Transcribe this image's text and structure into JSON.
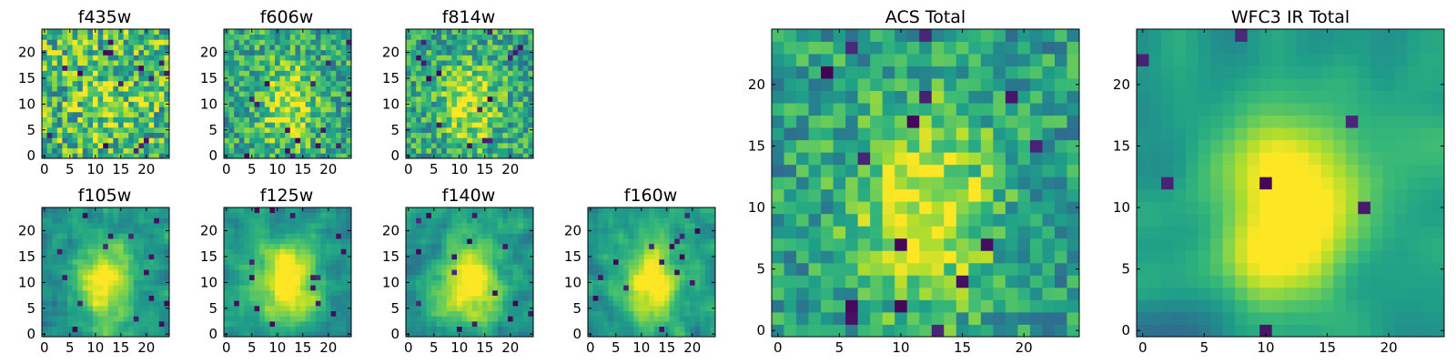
{
  "chart_data": [
    {
      "type": "heatmap",
      "title": "f435w",
      "colormap": "viridis",
      "grid": false,
      "xlim": [
        -0.5,
        24.5
      ],
      "ylim": [
        -0.5,
        24.5
      ],
      "xticks": [
        "0",
        "5",
        "10",
        "15",
        "20"
      ],
      "yticks": [
        "0",
        "5",
        "10",
        "15",
        "20"
      ],
      "rows": 25,
      "cols": 25,
      "pattern": "noise",
      "seed": 11
    },
    {
      "type": "heatmap",
      "title": "f606w",
      "colormap": "viridis",
      "grid": false,
      "xlim": [
        -0.5,
        24.5
      ],
      "ylim": [
        -0.5,
        24.5
      ],
      "xticks": [
        "0",
        "5",
        "10",
        "15",
        "20"
      ],
      "yticks": [
        "0",
        "5",
        "10",
        "15",
        "20"
      ],
      "rows": 25,
      "cols": 25,
      "pattern": "noise-center",
      "seed": 23
    },
    {
      "type": "heatmap",
      "title": "f814w",
      "colormap": "viridis",
      "grid": false,
      "xlim": [
        -0.5,
        24.5
      ],
      "ylim": [
        -0.5,
        24.5
      ],
      "xticks": [
        "0",
        "5",
        "10",
        "15",
        "20"
      ],
      "yticks": [
        "0",
        "5",
        "10",
        "15",
        "20"
      ],
      "rows": 25,
      "cols": 25,
      "pattern": "noise-center",
      "seed": 37
    },
    {
      "type": "heatmap",
      "title": "f105w",
      "colormap": "viridis",
      "grid": false,
      "xlim": [
        -0.5,
        24.5
      ],
      "ylim": [
        -0.5,
        24.5
      ],
      "xticks": [
        "0",
        "5",
        "10",
        "15",
        "20"
      ],
      "yticks": [
        "0",
        "5",
        "10",
        "15",
        "20"
      ],
      "rows": 25,
      "cols": 25,
      "pattern": "blob",
      "seed": 41
    },
    {
      "type": "heatmap",
      "title": "f125w",
      "colormap": "viridis",
      "grid": false,
      "xlim": [
        -0.5,
        24.5
      ],
      "ylim": [
        -0.5,
        24.5
      ],
      "xticks": [
        "0",
        "5",
        "10",
        "15",
        "20"
      ],
      "yticks": [
        "0",
        "5",
        "10",
        "15",
        "20"
      ],
      "rows": 25,
      "cols": 25,
      "pattern": "blob",
      "seed": 53
    },
    {
      "type": "heatmap",
      "title": "f140w",
      "colormap": "viridis",
      "grid": false,
      "xlim": [
        -0.5,
        24.5
      ],
      "ylim": [
        -0.5,
        24.5
      ],
      "xticks": [
        "0",
        "5",
        "10",
        "15",
        "20"
      ],
      "yticks": [
        "0",
        "5",
        "10",
        "15",
        "20"
      ],
      "rows": 25,
      "cols": 25,
      "pattern": "blob",
      "seed": 67
    },
    {
      "type": "heatmap",
      "title": "f160w",
      "colormap": "viridis",
      "grid": false,
      "xlim": [
        -0.5,
        24.5
      ],
      "ylim": [
        -0.5,
        24.5
      ],
      "xticks": [
        "0",
        "5",
        "10",
        "15",
        "20"
      ],
      "yticks": [
        "0",
        "5",
        "10",
        "15",
        "20"
      ],
      "rows": 25,
      "cols": 25,
      "pattern": "blob",
      "seed": 79
    },
    {
      "type": "heatmap",
      "title": "ACS Total",
      "colormap": "viridis",
      "grid": false,
      "xlim": [
        -0.5,
        24.5
      ],
      "ylim": [
        -0.5,
        24.5
      ],
      "xticks": [
        "0",
        "5",
        "10",
        "15",
        "20"
      ],
      "yticks": [
        "0",
        "5",
        "10",
        "15",
        "20"
      ],
      "rows": 25,
      "cols": 25,
      "pattern": "blob-noisy",
      "seed": 83
    },
    {
      "type": "heatmap",
      "title": "WFC3 IR Total",
      "colormap": "viridis",
      "grid": false,
      "xlim": [
        -0.5,
        24.5
      ],
      "ylim": [
        -0.5,
        24.5
      ],
      "xticks": [
        "0",
        "5",
        "10",
        "15",
        "20"
      ],
      "yticks": [
        "0",
        "5",
        "10",
        "15",
        "20"
      ],
      "rows": 25,
      "cols": 25,
      "pattern": "blob-smooth",
      "seed": 97
    }
  ]
}
